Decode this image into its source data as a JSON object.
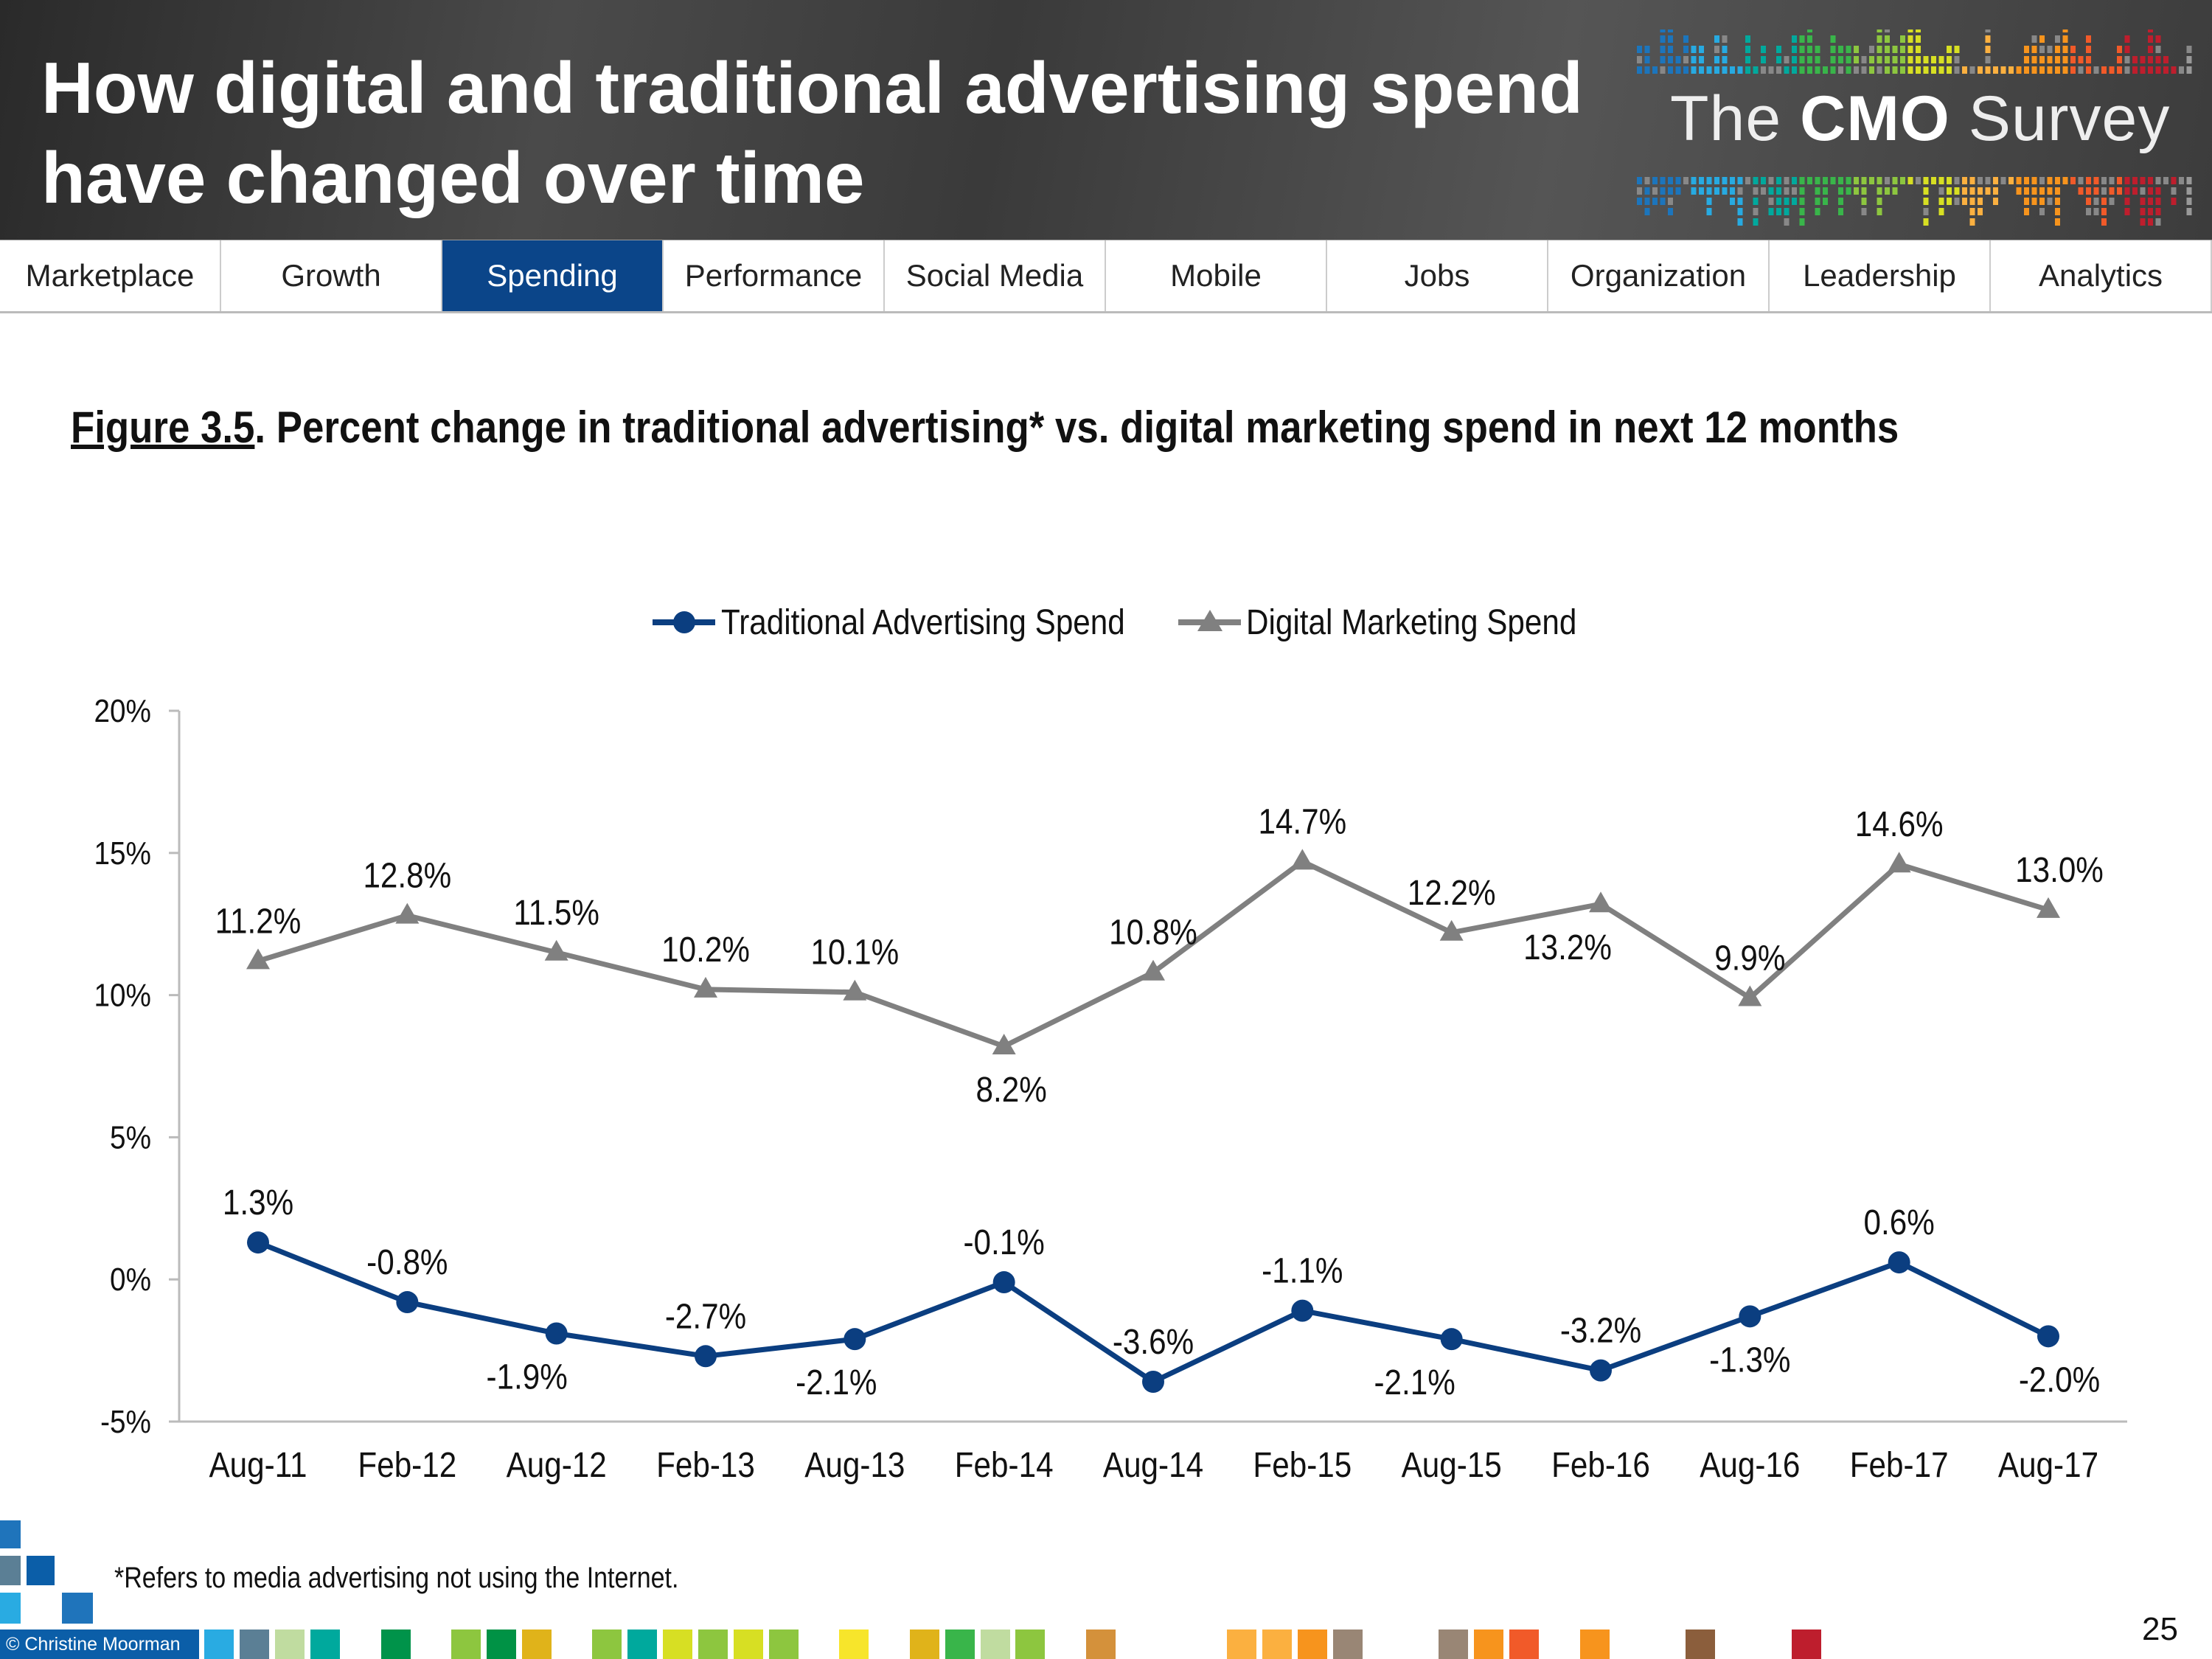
{
  "header": {
    "title_line1": "How digital and traditional advertising spend",
    "title_line2": "have changed over time",
    "logo_the": "The",
    "logo_cmo": "CMO",
    "logo_survey": "Survey"
  },
  "nav": {
    "tabs": [
      {
        "label": "Marketplace"
      },
      {
        "label": "Growth"
      },
      {
        "label": "Spending",
        "active": true
      },
      {
        "label": "Performance"
      },
      {
        "label": "Social Media"
      },
      {
        "label": "Mobile"
      },
      {
        "label": "Jobs"
      },
      {
        "label": "Organization"
      },
      {
        "label": "Leadership"
      },
      {
        "label": "Analytics"
      }
    ],
    "active_color": "#0b4589"
  },
  "figure": {
    "number": "Figure 3.5",
    "title": ".  Percent change in traditional advertising* vs. digital marketing spend in next 12 months"
  },
  "chart_data": {
    "type": "line",
    "categories": [
      "Aug-11",
      "Feb-12",
      "Aug-12",
      "Feb-13",
      "Aug-13",
      "Feb-14",
      "Aug-14",
      "Feb-15",
      "Aug-15",
      "Feb-16",
      "Aug-16",
      "Feb-17",
      "Aug-17"
    ],
    "ylim": [
      -5,
      20
    ],
    "yticks": [
      "-5%",
      "0%",
      "5%",
      "10%",
      "15%",
      "20%"
    ],
    "ytick_values": [
      -5,
      0,
      5,
      10,
      15,
      20
    ],
    "grid": false,
    "legend_position": "top-center",
    "series": [
      {
        "name": "Traditional Advertising Spend",
        "color": "#0b3e80",
        "marker": "circle",
        "values": [
          1.3,
          -0.8,
          -1.9,
          -2.7,
          -2.1,
          -0.1,
          -3.6,
          -1.1,
          -2.1,
          -3.2,
          -1.3,
          0.6,
          -2.0
        ],
        "labels": [
          "1.3%",
          "-0.8%",
          "-1.9%",
          "-2.7%",
          "-2.1%",
          "-0.1%",
          "-3.6%",
          "-1.1%",
          "-2.1%",
          "-3.2%",
          "-1.3%",
          "0.6%",
          "-2.0%"
        ]
      },
      {
        "name": "Digital Marketing Spend",
        "color": "#808080",
        "marker": "triangle",
        "values": [
          11.2,
          12.8,
          11.5,
          10.2,
          10.1,
          8.2,
          10.8,
          14.7,
          12.2,
          13.2,
          9.9,
          14.6,
          13.0
        ],
        "labels": [
          "11.2%",
          "12.8%",
          "11.5%",
          "10.2%",
          "10.1%",
          "8.2%",
          "10.8%",
          "14.7%",
          "12.2%",
          "13.2%",
          "9.9%",
          "14.6%",
          "13.0%"
        ]
      }
    ]
  },
  "footnote": "*Refers to media advertising not using the Internet.",
  "footer": {
    "copyright": "© Christine Moorman",
    "page_number": "25"
  }
}
